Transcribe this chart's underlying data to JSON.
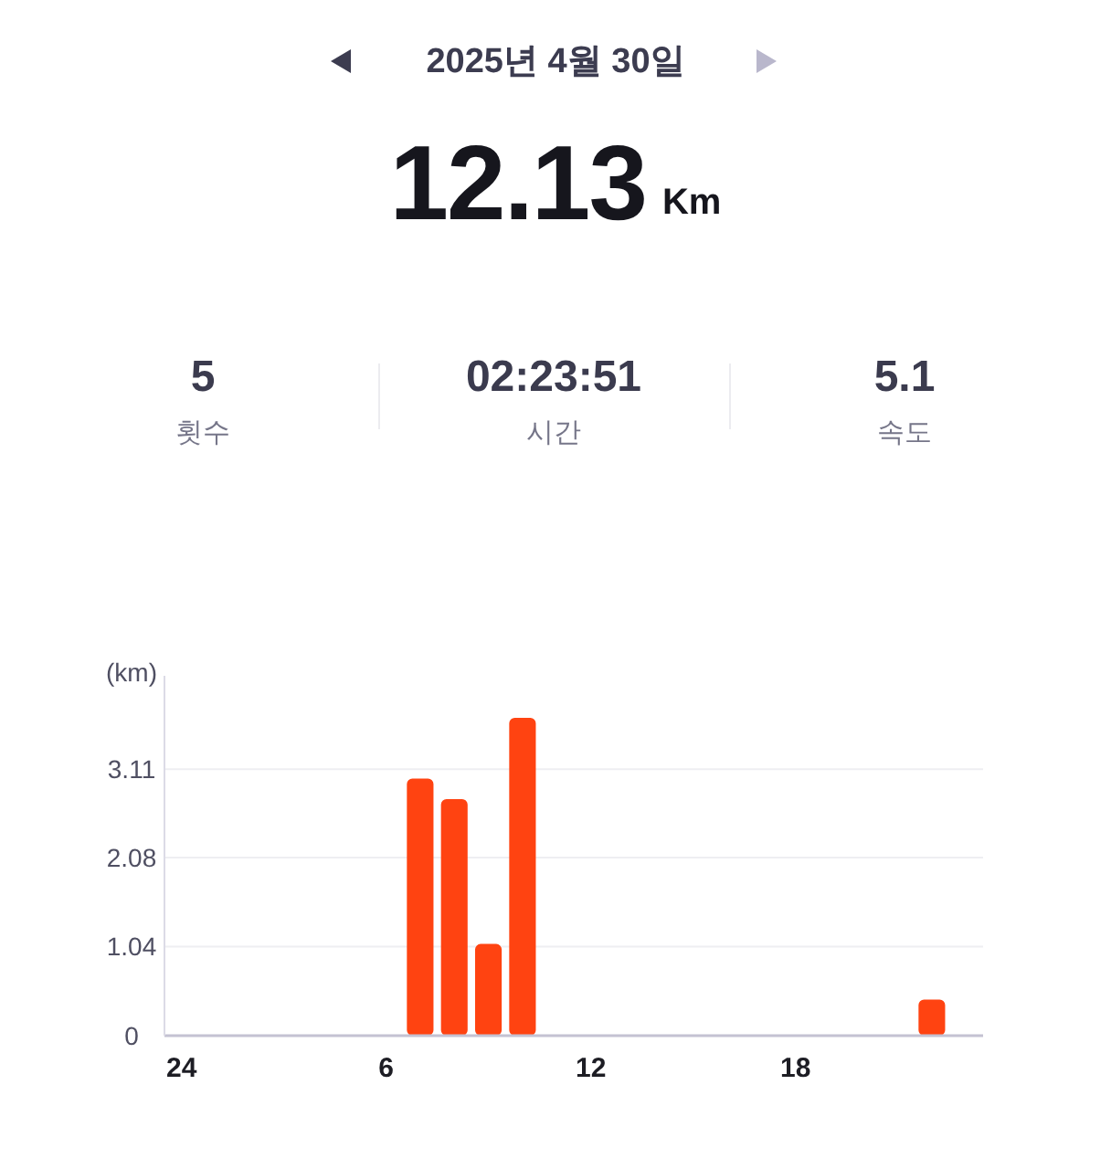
{
  "chart_data": {
    "type": "bar",
    "title": "2025년 4월 30일",
    "annotations": [
      "12.13",
      "Km",
      "5",
      "횟수",
      "02:23:51",
      "시간",
      "5.1",
      "속도"
    ],
    "ylabel": "(km)",
    "categories": [
      "24",
      null,
      null,
      null,
      null,
      null,
      "6",
      null,
      null,
      null,
      null,
      null,
      "12",
      null,
      null,
      null,
      null,
      null,
      "18",
      null,
      null,
      null,
      null,
      null
    ],
    "values": [
      null,
      null,
      null,
      null,
      null,
      null,
      null,
      3.0,
      2.76,
      1.07,
      3.71,
      null,
      null,
      null,
      null,
      null,
      null,
      null,
      null,
      null,
      null,
      null,
      0.42,
      null
    ],
    "color": "#ff4311",
    "ylim": [
      0,
      4.2
    ],
    "yticks": [
      0,
      1.04,
      2.08,
      3.11
    ],
    "grid": "y"
  }
}
